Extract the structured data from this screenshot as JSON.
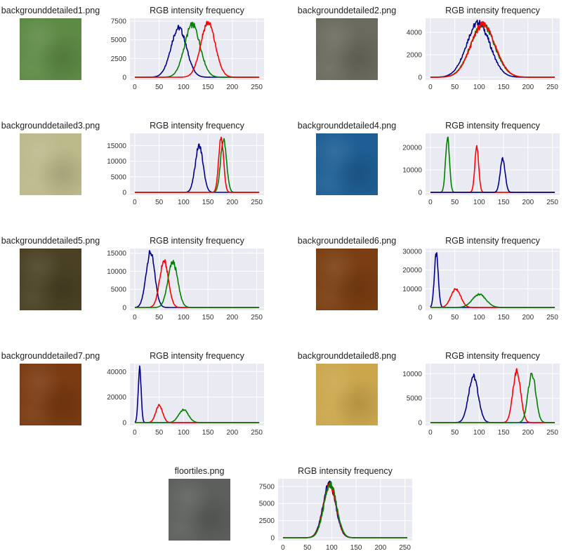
{
  "figures": [
    {
      "filename": "backgrounddetailed1.png",
      "texture_color": "#5d8a45",
      "chart_data": {
        "type": "line",
        "title": "RGB intensity frequency",
        "xlim": [
          0,
          255
        ],
        "ylim": [
          0,
          7500
        ],
        "xticks": [
          0,
          50,
          100,
          150,
          200,
          250
        ],
        "yticks": [
          0,
          2500,
          5000,
          7500
        ],
        "grid": true,
        "series": [
          {
            "color": "#00008b",
            "peaks": [
              {
                "mu": 90,
                "sigma": 16,
                "amp": 6600
              }
            ]
          },
          {
            "color": "#008000",
            "peaks": [
              {
                "mu": 118,
                "sigma": 16,
                "amp": 7000
              }
            ]
          },
          {
            "color": "#ff0000",
            "peaks": [
              {
                "mu": 150,
                "sigma": 15,
                "amp": 7300
              }
            ]
          }
        ]
      }
    },
    {
      "filename": "backgrounddetailed2.png",
      "texture_color": "#6a6a5e",
      "chart_data": {
        "type": "line",
        "title": "RGB intensity frequency",
        "xlim": [
          0,
          255
        ],
        "ylim": [
          0,
          5000
        ],
        "xticks": [
          0,
          50,
          100,
          150,
          200,
          250
        ],
        "yticks": [
          0,
          2000,
          4000
        ],
        "grid": true,
        "series": [
          {
            "color": "#00008b",
            "peaks": [
              {
                "mu": 98,
                "sigma": 24,
                "amp": 4850
              }
            ]
          },
          {
            "color": "#008000",
            "peaks": [
              {
                "mu": 107,
                "sigma": 25,
                "amp": 4650
              }
            ]
          },
          {
            "color": "#ff0000",
            "peaks": [
              {
                "mu": 108,
                "sigma": 25,
                "amp": 4700
              }
            ]
          }
        ]
      }
    },
    {
      "filename": "backgrounddetailed3.png",
      "texture_color": "#bcb98b",
      "chart_data": {
        "type": "line",
        "title": "RGB intensity frequency",
        "xlim": [
          0,
          255
        ],
        "ylim": [
          0,
          18000
        ],
        "xticks": [
          0,
          50,
          100,
          150,
          200,
          250
        ],
        "yticks": [
          0,
          5000,
          10000,
          15000
        ],
        "grid": true,
        "series": [
          {
            "color": "#00008b",
            "peaks": [
              {
                "mu": 132,
                "sigma": 8,
                "amp": 15000
              }
            ]
          },
          {
            "color": "#008000",
            "peaks": [
              {
                "mu": 182,
                "sigma": 6,
                "amp": 17000
              }
            ]
          },
          {
            "color": "#ff0000",
            "peaks": [
              {
                "mu": 177,
                "sigma": 5,
                "amp": 17500
              }
            ]
          }
        ]
      }
    },
    {
      "filename": "backgrounddetailed4.png",
      "texture_color": "#1e5e94",
      "chart_data": {
        "type": "line",
        "title": "RGB intensity frequency",
        "xlim": [
          0,
          255
        ],
        "ylim": [
          0,
          25000
        ],
        "xticks": [
          0,
          50,
          100,
          150,
          200,
          250
        ],
        "yticks": [
          0,
          10000,
          20000
        ],
        "grid": true,
        "series": [
          {
            "color": "#008000",
            "peaks": [
              {
                "mu": 35,
                "sigma": 4,
                "amp": 24000
              }
            ]
          },
          {
            "color": "#ff0000",
            "peaks": [
              {
                "mu": 95,
                "sigma": 4,
                "amp": 20000
              }
            ]
          },
          {
            "color": "#00008b",
            "peaks": [
              {
                "mu": 148,
                "sigma": 5,
                "amp": 15000
              }
            ]
          }
        ]
      }
    },
    {
      "filename": "backgrounddetailed5.png",
      "texture_color": "#4a4124",
      "chart_data": {
        "type": "line",
        "title": "RGB intensity frequency",
        "xlim": [
          0,
          255
        ],
        "ylim": [
          0,
          15500
        ],
        "xticks": [
          0,
          50,
          100,
          150,
          200,
          250
        ],
        "yticks": [
          0,
          5000,
          10000,
          15000
        ],
        "grid": true,
        "series": [
          {
            "color": "#00008b",
            "peaks": [
              {
                "mu": 32,
                "sigma": 9,
                "amp": 15200
              }
            ]
          },
          {
            "color": "#ff0000",
            "peaks": [
              {
                "mu": 60,
                "sigma": 9,
                "amp": 12800
              }
            ]
          },
          {
            "color": "#008000",
            "peaks": [
              {
                "mu": 78,
                "sigma": 10,
                "amp": 12500
              }
            ]
          }
        ]
      }
    },
    {
      "filename": "backgrounddetailed6.png",
      "texture_color": "#7a3e12",
      "chart_data": {
        "type": "line",
        "title": "RGB intensity frequency",
        "xlim": [
          0,
          255
        ],
        "ylim": [
          0,
          30000
        ],
        "xticks": [
          0,
          50,
          100,
          150,
          200,
          250
        ],
        "yticks": [
          0,
          10000,
          20000,
          30000
        ],
        "grid": true,
        "series": [
          {
            "color": "#00008b",
            "peaks": [
              {
                "mu": 12,
                "sigma": 4,
                "amp": 28500
              }
            ]
          },
          {
            "color": "#ff0000",
            "peaks": [
              {
                "mu": 52,
                "sigma": 10,
                "amp": 9800
              }
            ]
          },
          {
            "color": "#008000",
            "peaks": [
              {
                "mu": 100,
                "sigma": 14,
                "amp": 7000
              }
            ]
          }
        ]
      }
    },
    {
      "filename": "backgrounddetailed7.png",
      "texture_color": "#7a3b12",
      "chart_data": {
        "type": "line",
        "title": "RGB intensity frequency",
        "xlim": [
          0,
          255
        ],
        "ylim": [
          0,
          44000
        ],
        "xticks": [
          0,
          50,
          100,
          150,
          200,
          250
        ],
        "yticks": [
          0,
          20000,
          40000
        ],
        "grid": true,
        "series": [
          {
            "color": "#00008b",
            "peaks": [
              {
                "mu": 10,
                "sigma": 3,
                "amp": 42000
              }
            ]
          },
          {
            "color": "#ff0000",
            "peaks": [
              {
                "mu": 50,
                "sigma": 7,
                "amp": 13500
              }
            ]
          },
          {
            "color": "#008000",
            "peaks": [
              {
                "mu": 100,
                "sigma": 10,
                "amp": 10000
              }
            ]
          }
        ]
      }
    },
    {
      "filename": "backgrounddetailed8.png",
      "texture_color": "#cba64c",
      "chart_data": {
        "type": "line",
        "title": "RGB intensity frequency",
        "xlim": [
          0,
          255
        ],
        "ylim": [
          0,
          11500
        ],
        "xticks": [
          0,
          50,
          100,
          150,
          200,
          250
        ],
        "yticks": [
          0,
          5000,
          10000
        ],
        "grid": true,
        "series": [
          {
            "color": "#00008b",
            "peaks": [
              {
                "mu": 88,
                "sigma": 10,
                "amp": 9500
              }
            ]
          },
          {
            "color": "#ff0000",
            "peaks": [
              {
                "mu": 177,
                "sigma": 8,
                "amp": 10500
              }
            ]
          },
          {
            "color": "#008000",
            "peaks": [
              {
                "mu": 208,
                "sigma": 8,
                "amp": 10000
              }
            ]
          }
        ]
      }
    },
    {
      "filename": "floortiles.png",
      "texture_color": "#5c5f5c",
      "chart_data": {
        "type": "line",
        "title": "RGB intensity frequency",
        "xlim": [
          0,
          255
        ],
        "ylim": [
          0,
          8200
        ],
        "xticks": [
          0,
          50,
          100,
          150,
          200,
          250
        ],
        "yticks": [
          0,
          2500,
          5000,
          7500
        ],
        "grid": true,
        "series": [
          {
            "color": "#00008b",
            "peaks": [
              {
                "mu": 95,
                "sigma": 13,
                "amp": 7900
              }
            ]
          },
          {
            "color": "#ff0000",
            "peaks": [
              {
                "mu": 96,
                "sigma": 13,
                "amp": 7700
              }
            ]
          },
          {
            "color": "#008000",
            "peaks": [
              {
                "mu": 97,
                "sigma": 13,
                "amp": 7800
              }
            ]
          }
        ]
      }
    }
  ]
}
